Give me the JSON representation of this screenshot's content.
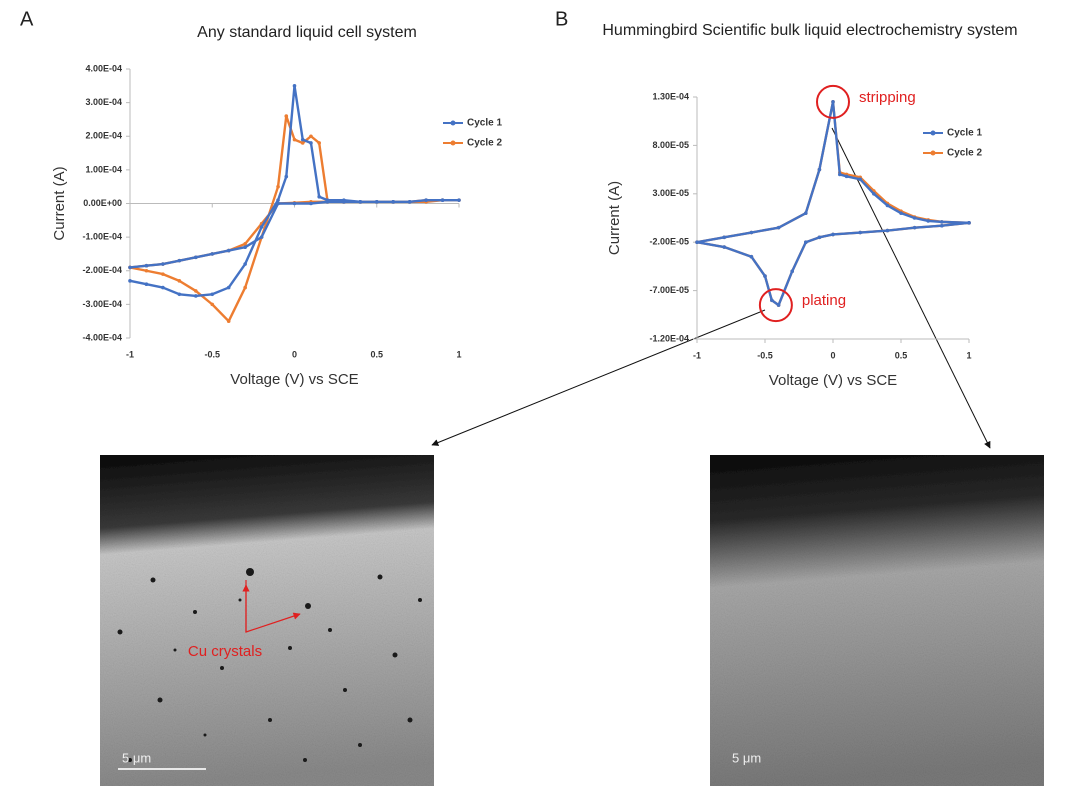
{
  "chart_data": [
    {
      "type": "line",
      "panel_label": "A",
      "title": "Any standard liquid cell system",
      "x_label": "Voltage (V) vs SCE",
      "y_label": "Current (A)",
      "xlim": [
        -1,
        1
      ],
      "xticks": [
        -1,
        -0.5,
        0,
        0.5,
        1
      ],
      "ylim": [
        -0.0004,
        0.0004
      ],
      "yticks": [
        {
          "value": 0.0004,
          "label": "4.00E-04"
        },
        {
          "value": 0.0003,
          "label": "3.00E-04"
        },
        {
          "value": 0.0002,
          "label": "2.00E-04"
        },
        {
          "value": 0.0001,
          "label": "1.00E-04"
        },
        {
          "value": 0,
          "label": "0.00E+00"
        },
        {
          "value": -0.0001,
          "label": "-1.00E-04"
        },
        {
          "value": -0.0002,
          "label": "-2.00E-04"
        },
        {
          "value": -0.0003,
          "label": "-3.00E-04"
        },
        {
          "value": -0.0004,
          "label": "-4.00E-04"
        }
      ],
      "x": [
        -1,
        -0.9,
        -0.8,
        -0.7,
        -0.6,
        -0.5,
        -0.4,
        -0.3,
        -0.2,
        -0.1,
        -0.05,
        0,
        0.05,
        0.1,
        0.15,
        0.2,
        0.3,
        0.4,
        0.5,
        0.6,
        0.7,
        0.8,
        0.9,
        1,
        0.9,
        0.8,
        0.7,
        0.6,
        0.5,
        0.4,
        0.3,
        0.2,
        0.1,
        0,
        -0.1,
        -0.2,
        -0.3,
        -0.4,
        -0.5,
        -0.6,
        -0.7,
        -0.8,
        -0.9,
        -1
      ],
      "series": [
        {
          "name": "Cycle 1",
          "color": "#4472c4",
          "values": [
            -0.00023,
            -0.00024,
            -0.00025,
            -0.00027,
            -0.000275,
            -0.00027,
            -0.00025,
            -0.00018,
            -7e-05,
            1e-05,
            8e-05,
            0.00035,
            0.00019,
            0.00018,
            2e-05,
            1e-05,
            1e-05,
            5e-06,
            5e-06,
            5e-06,
            5e-06,
            1e-05,
            1e-05,
            1e-05,
            1e-05,
            1e-05,
            5e-06,
            5e-06,
            5e-06,
            5e-06,
            5e-06,
            5e-06,
            0,
            0,
            0,
            -0.0001,
            -0.00013,
            -0.00014,
            -0.00015,
            -0.00016,
            -0.00017,
            -0.00018,
            -0.000185,
            -0.00019
          ]
        },
        {
          "name": "Cycle 2",
          "color": "#ed7d31",
          "values": [
            -0.00019,
            -0.0002,
            -0.00021,
            -0.00023,
            -0.00026,
            -0.0003,
            -0.00035,
            -0.00025,
            -0.0001,
            5e-05,
            0.00026,
            0.00019,
            0.00018,
            0.0002,
            0.00018,
            1e-05,
            5e-06,
            5e-06,
            5e-06,
            5e-06,
            5e-06,
            5e-06,
            1e-05,
            1e-05,
            1e-05,
            1e-05,
            5e-06,
            5e-06,
            5e-06,
            5e-06,
            5e-06,
            5e-06,
            5e-06,
            2e-06,
            0,
            -6e-05,
            -0.00012,
            -0.00014,
            -0.00015,
            -0.00016,
            -0.00017,
            -0.00018,
            -0.000185,
            -0.00019
          ]
        }
      ]
    },
    {
      "type": "line",
      "panel_label": "B",
      "title": "Hummingbird Scientific bulk liquid electrochemistry system",
      "x_label": "Voltage (V) vs SCE",
      "y_label": "Current (A)",
      "xlim": [
        -1,
        1
      ],
      "xticks": [
        -1,
        -0.5,
        0,
        0.5,
        1
      ],
      "ylim": [
        -0.00012,
        0.00013
      ],
      "yticks": [
        {
          "value": 0.00013,
          "label": "1.30E-04"
        },
        {
          "value": 8e-05,
          "label": "8.00E-05"
        },
        {
          "value": 3e-05,
          "label": "3.00E-05"
        },
        {
          "value": -2e-05,
          "label": "-2.00E-05"
        },
        {
          "value": -7e-05,
          "label": "-7.00E-05"
        },
        {
          "value": -0.00012,
          "label": "-1.20E-04"
        }
      ],
      "x": [
        1,
        0.8,
        0.6,
        0.4,
        0.2,
        0,
        -0.1,
        -0.2,
        -0.3,
        -0.4,
        -0.45,
        -0.5,
        -0.6,
        -0.8,
        -1,
        -0.8,
        -0.6,
        -0.4,
        -0.2,
        -0.1,
        0,
        0.05,
        0.1,
        0.2,
        0.3,
        0.4,
        0.5,
        0.6,
        0.7,
        0.8,
        1
      ],
      "series": [
        {
          "name": "Cycle 1",
          "color": "#4472c4",
          "values": [
            0,
            -3e-06,
            -5e-06,
            -8e-06,
            -1e-05,
            -1.2e-05,
            -1.5e-05,
            -2e-05,
            -5e-05,
            -8.5e-05,
            -8e-05,
            -5.5e-05,
            -3.5e-05,
            -2.5e-05,
            -2e-05,
            -1.5e-05,
            -1e-05,
            -5e-06,
            1e-05,
            5.5e-05,
            0.000125,
            5e-05,
            4.8e-05,
            4.5e-05,
            3e-05,
            1.8e-05,
            1e-05,
            5e-06,
            2e-06,
            1e-06,
            0
          ]
        },
        {
          "name": "Cycle 2",
          "color": "#ed7d31",
          "values": [
            0,
            -3e-06,
            -5e-06,
            -8e-06,
            -1e-05,
            -1.2e-05,
            -1.5e-05,
            -2e-05,
            -5e-05,
            -8.5e-05,
            -8e-05,
            -5.5e-05,
            -3.5e-05,
            -2.5e-05,
            -2e-05,
            -1.5e-05,
            -1e-05,
            -5e-06,
            1e-05,
            5.5e-05,
            0.000125,
            5.2e-05,
            5e-05,
            4.7e-05,
            3.3e-05,
            2e-05,
            1.2e-05,
            6e-06,
            3e-06,
            1e-06,
            0
          ]
        }
      ],
      "annotations": [
        {
          "text": "stripping",
          "x": 0,
          "y": 0.000125
        },
        {
          "text": "plating",
          "x": -0.42,
          "y": -8.5e-05
        }
      ]
    }
  ],
  "images": [
    {
      "annotation": "Cu crystals",
      "scale_bar": "5 μm"
    },
    {
      "scale_bar": "5 μm"
    }
  ]
}
